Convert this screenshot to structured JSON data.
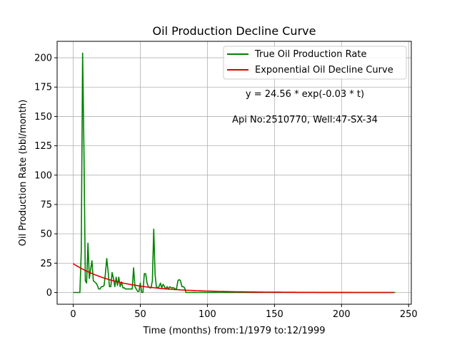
{
  "chart_data": {
    "type": "line",
    "title": "Oil Production Decline Curve",
    "xlabel": "Time (months) from:1/1979 to:12/1999",
    "ylabel": "Oil Production Rate (bbl/month)",
    "xlim": [
      -12,
      252
    ],
    "ylim": [
      -10,
      214
    ],
    "xticks": [
      0,
      50,
      100,
      150,
      200,
      250
    ],
    "yticks": [
      0,
      25,
      50,
      75,
      100,
      125,
      150,
      175,
      200
    ],
    "grid": true,
    "legend_position": "top-right",
    "annotations": [
      "y = 24.56 * exp(-0.03 * t)",
      "Api No:2510770, Well:47-SX-34"
    ],
    "series": [
      {
        "name": "True Oil Production Rate",
        "color": "#008000",
        "x": [
          0,
          1,
          2,
          3,
          4,
          5,
          6,
          7,
          8,
          9,
          10,
          11,
          12,
          13,
          14,
          15,
          16,
          17,
          18,
          19,
          20,
          21,
          22,
          23,
          24,
          25,
          26,
          27,
          28,
          29,
          30,
          31,
          32,
          33,
          34,
          35,
          36,
          37,
          38,
          39,
          40,
          41,
          42,
          43,
          44,
          45,
          46,
          47,
          48,
          49,
          50,
          51,
          52,
          53,
          54,
          55,
          56,
          57,
          58,
          59,
          60,
          61,
          62,
          63,
          64,
          65,
          66,
          67,
          68,
          69,
          70,
          71,
          72,
          73,
          74,
          75,
          76,
          77,
          78,
          79,
          80,
          81,
          82,
          83,
          84,
          85,
          90,
          100,
          120,
          150,
          200,
          240
        ],
        "y": [
          0,
          0,
          0,
          0,
          0,
          0,
          35,
          204,
          120,
          10,
          8,
          42,
          12,
          20,
          27,
          10,
          9,
          8,
          6,
          3,
          3,
          5,
          5,
          6,
          16,
          29,
          18,
          5,
          5,
          17,
          12,
          5,
          13,
          6,
          13,
          5,
          9,
          4,
          4,
          3,
          3,
          3,
          3,
          3,
          3,
          21,
          5,
          3,
          1,
          1,
          8,
          0,
          0,
          16,
          16,
          8,
          5,
          4,
          4,
          10,
          54,
          15,
          5,
          4,
          5,
          8,
          4,
          7,
          5,
          3,
          5,
          3,
          5,
          4,
          4,
          4,
          3,
          3,
          10,
          11,
          10,
          5,
          5,
          4,
          0,
          0,
          0,
          0,
          0,
          0,
          0,
          0
        ]
      },
      {
        "name": "Exponential Oil Decline Curve",
        "color": "#e00000",
        "model": {
          "a": 24.56,
          "b": 0.03,
          "x_start": 0,
          "x_end": 239
        }
      }
    ]
  }
}
